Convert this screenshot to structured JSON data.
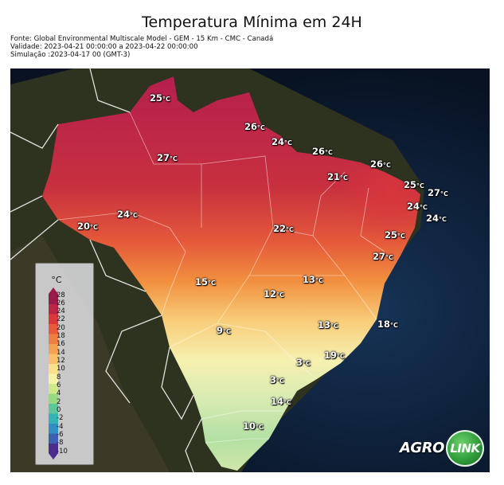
{
  "title": "Temperatura Mínima em 24H",
  "meta": {
    "source": "Fonte: Global Environmental Multiscale Model - GEM - 15 Km - CMC - Canadá",
    "validity": "Validade: 2023-04-21 00:00:00 a 2023-04-22 00:00:00",
    "simulation": "Simulação :2023-04-17 00 (GMT-3)"
  },
  "colorbar": {
    "unit": "°C",
    "ticks": [
      "28",
      "26",
      "24",
      "22",
      "20",
      "18",
      "16",
      "14",
      "12",
      "10",
      "8",
      "6",
      "4",
      "2",
      "0",
      "-2",
      "-4",
      "-6",
      "-8",
      "-10"
    ],
    "colors": [
      "#4b2c8c",
      "#3d5fb5",
      "#2f8fc4",
      "#33b3b5",
      "#5cc79a",
      "#97d882",
      "#cfe98a",
      "#f4f3a6",
      "#fbe08a",
      "#f8c06a",
      "#f5a152",
      "#ef7f41",
      "#e85a38",
      "#d9393b",
      "#bd2545",
      "#9a1a4b"
    ]
  },
  "temperatures": [
    {
      "value": "25",
      "unit": "°C"
    },
    {
      "value": "26",
      "unit": "°C"
    },
    {
      "value": "27",
      "unit": "°C"
    },
    {
      "value": "24",
      "unit": "°C"
    },
    {
      "value": "26",
      "unit": "°C"
    },
    {
      "value": "26",
      "unit": "°C"
    },
    {
      "value": "21",
      "unit": "°C"
    },
    {
      "value": "25",
      "unit": "°C"
    },
    {
      "value": "27",
      "unit": "°C"
    },
    {
      "value": "24",
      "unit": "°C"
    },
    {
      "value": "24",
      "unit": "°C"
    },
    {
      "value": "24",
      "unit": "°C"
    },
    {
      "value": "20",
      "unit": "°C"
    },
    {
      "value": "22",
      "unit": "°C"
    },
    {
      "value": "25",
      "unit": "°C"
    },
    {
      "value": "27",
      "unit": "°C"
    },
    {
      "value": "15",
      "unit": "°C"
    },
    {
      "value": "13",
      "unit": "°C"
    },
    {
      "value": "12",
      "unit": "°C"
    },
    {
      "value": "9",
      "unit": "°C"
    },
    {
      "value": "13",
      "unit": "°C"
    },
    {
      "value": "18",
      "unit": "°C"
    },
    {
      "value": "19",
      "unit": "°C"
    },
    {
      "value": "3",
      "unit": "°C"
    },
    {
      "value": "3",
      "unit": "°C"
    },
    {
      "value": "14",
      "unit": "°C"
    },
    {
      "value": "10",
      "unit": "°C"
    }
  ],
  "logo": {
    "word": "AGRO",
    "circle": "LINK"
  }
}
